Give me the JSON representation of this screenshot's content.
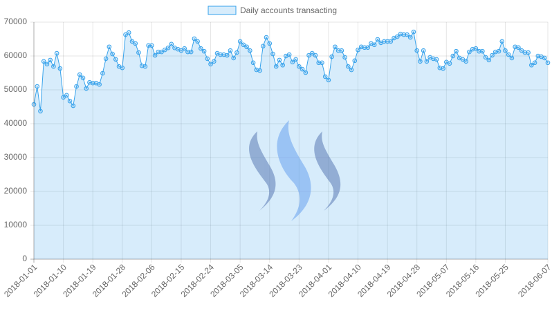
{
  "chart_data": {
    "type": "line",
    "categories": [
      "2018-01-01",
      null,
      null,
      null,
      null,
      null,
      null,
      null,
      null,
      "2018-01-10",
      null,
      null,
      null,
      null,
      null,
      null,
      null,
      null,
      "2018-01-19",
      null,
      null,
      null,
      null,
      null,
      null,
      null,
      null,
      "2018-01-28",
      null,
      null,
      null,
      null,
      null,
      null,
      null,
      null,
      "2018-02-06",
      null,
      null,
      null,
      null,
      null,
      null,
      null,
      null,
      "2018-02-15",
      null,
      null,
      null,
      null,
      null,
      null,
      null,
      null,
      "2018-02-24",
      null,
      null,
      null,
      null,
      null,
      null,
      null,
      null,
      "2018-03-05",
      null,
      null,
      null,
      null,
      null,
      null,
      null,
      null,
      "2018-03-14",
      null,
      null,
      null,
      null,
      null,
      null,
      null,
      null,
      "2018-03-23",
      null,
      null,
      null,
      null,
      null,
      null,
      null,
      null,
      "2018-04-01",
      null,
      null,
      null,
      null,
      null,
      null,
      null,
      null,
      "2018-04-10",
      null,
      null,
      null,
      null,
      null,
      null,
      null,
      null,
      "2018-04-19",
      null,
      null,
      null,
      null,
      null,
      null,
      null,
      null,
      "2018-04-28",
      null,
      null,
      null,
      null,
      null,
      null,
      null,
      null,
      "2018-05-07",
      null,
      null,
      null,
      null,
      null,
      null,
      null,
      null,
      "2018-05-16",
      null,
      null,
      null,
      null,
      null,
      null,
      null,
      null,
      "2018-05-25",
      null,
      null,
      null,
      null,
      null,
      null,
      null,
      null,
      null,
      null,
      null,
      null,
      "2018-06-07"
    ],
    "series": [
      {
        "name": "Daily accounts transacting",
        "color": "#36a2eb",
        "fill": "rgba(54,162,235,0.2)",
        "values": [
          45700,
          51000,
          43700,
          58400,
          57600,
          58800,
          56900,
          60800,
          56300,
          47800,
          48400,
          46700,
          45300,
          51000,
          54500,
          53500,
          50400,
          52200,
          52000,
          52000,
          51600,
          54900,
          59200,
          62700,
          60600,
          59000,
          56900,
          56500,
          66300,
          66900,
          64300,
          63700,
          61000,
          57100,
          56900,
          63100,
          63100,
          60200,
          61200,
          61200,
          61800,
          62400,
          63500,
          62400,
          62000,
          61600,
          62200,
          61200,
          61200,
          65100,
          64300,
          62200,
          61400,
          59200,
          57600,
          58400,
          60800,
          60400,
          60400,
          60200,
          61600,
          59400,
          61000,
          64300,
          63300,
          62700,
          61600,
          58000,
          55900,
          55700,
          62900,
          65500,
          63700,
          60600,
          56900,
          58800,
          57300,
          60000,
          60400,
          58200,
          59000,
          56900,
          56100,
          55100,
          60200,
          60800,
          60200,
          58000,
          58000,
          53900,
          52900,
          59800,
          62700,
          61600,
          61600,
          59600,
          56900,
          55900,
          58600,
          61800,
          62700,
          62500,
          62500,
          63700,
          63300,
          64900,
          63900,
          64300,
          64300,
          64300,
          65300,
          65700,
          66500,
          66300,
          66300,
          65500,
          67100,
          61600,
          58400,
          61600,
          58400,
          59600,
          59200,
          59000,
          56500,
          56300,
          58200,
          57800,
          60000,
          61400,
          59400,
          59000,
          58400,
          61200,
          62000,
          62200,
          61400,
          61400,
          59600,
          58800,
          60200,
          61200,
          61400,
          64300,
          61600,
          60400,
          59400,
          62700,
          62500,
          61600,
          61000,
          61000,
          57300,
          58000,
          60000,
          59800,
          59400,
          58000
        ]
      }
    ],
    "ylim": [
      0,
      70000
    ],
    "yticks": [
      0,
      10000,
      20000,
      30000,
      40000,
      50000,
      60000,
      70000
    ],
    "grid": true,
    "legend": "top"
  }
}
